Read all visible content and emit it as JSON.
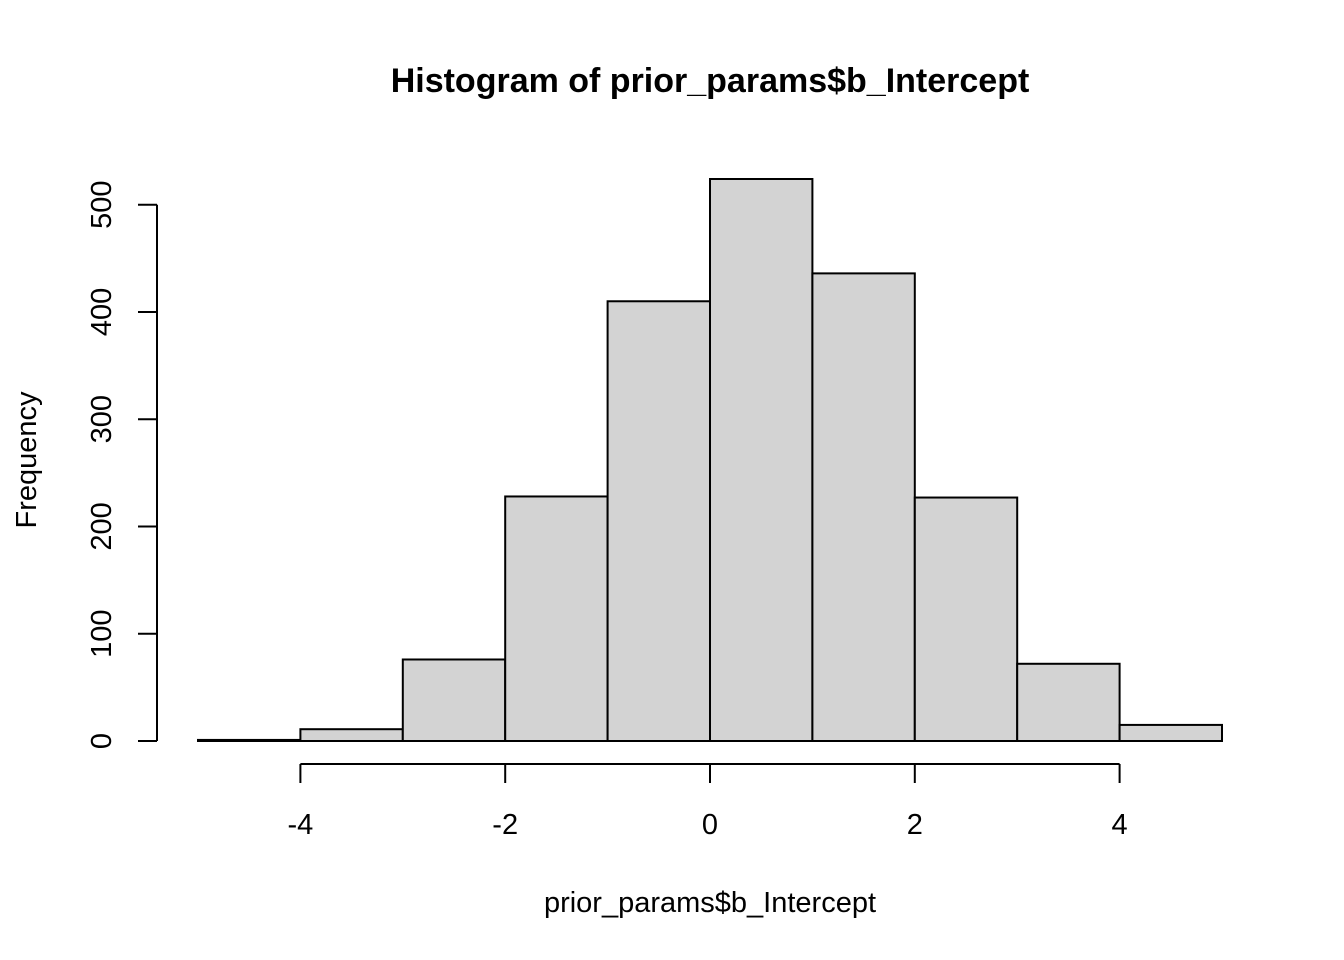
{
  "chart_data": {
    "type": "bar",
    "title": "Histogram of prior_params$b_Intercept",
    "xlabel": "prior_params$b_Intercept",
    "ylabel": "Frequency",
    "bins": [
      {
        "x0": -5,
        "x1": -4,
        "count": 1
      },
      {
        "x0": -4,
        "x1": -3,
        "count": 11
      },
      {
        "x0": -3,
        "x1": -2,
        "count": 76
      },
      {
        "x0": -2,
        "x1": -1,
        "count": 228
      },
      {
        "x0": -1,
        "x1": 0,
        "count": 410
      },
      {
        "x0": 0,
        "x1": 1,
        "count": 524
      },
      {
        "x0": 1,
        "x1": 2,
        "count": 436
      },
      {
        "x0": 2,
        "x1": 3,
        "count": 227
      },
      {
        "x0": 3,
        "x1": 4,
        "count": 72
      },
      {
        "x0": 4,
        "x1": 5,
        "count": 15
      }
    ],
    "x_ticks": [
      -4,
      -2,
      0,
      2,
      4
    ],
    "y_ticks": [
      0,
      100,
      200,
      300,
      400,
      500
    ],
    "xlim": [
      -5,
      5
    ],
    "ylim": [
      0,
      524
    ],
    "grid": false,
    "bar_color": "#d3d3d3",
    "edge_color": "#000000"
  }
}
